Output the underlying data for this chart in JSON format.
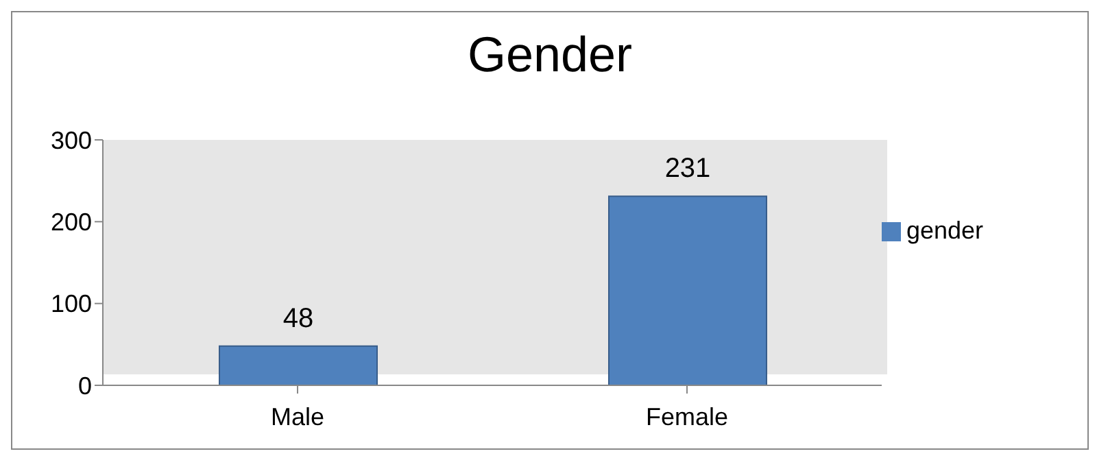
{
  "chart_data": {
    "type": "bar",
    "title": "Gender",
    "categories": [
      "Male",
      "Female"
    ],
    "series": [
      {
        "name": "gender",
        "color": "#4f81bd",
        "values": [
          48,
          231
        ]
      }
    ],
    "ylim": [
      0,
      300
    ],
    "yticks": [
      0,
      100,
      200,
      300
    ],
    "grid": false,
    "legend": "right",
    "data_labels": true
  }
}
